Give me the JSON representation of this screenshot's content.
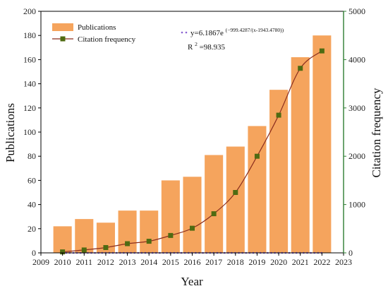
{
  "chart_data": {
    "type": "bar",
    "x": [
      2010,
      2011,
      2012,
      2013,
      2014,
      2015,
      2016,
      2017,
      2018,
      2019,
      2020,
      2021,
      2022
    ],
    "categories": [
      "2010",
      "2011",
      "2012",
      "2013",
      "2014",
      "2015",
      "2016",
      "2017",
      "2018",
      "2019",
      "2020",
      "2021",
      "2022"
    ],
    "series": [
      {
        "name": "Publications",
        "type": "bar",
        "axis": "left",
        "color": "#F5A45D",
        "values": [
          22,
          28,
          25,
          35,
          35,
          60,
          63,
          81,
          88,
          105,
          135,
          162,
          180
        ]
      },
      {
        "name": "Citation frequency",
        "type": "line",
        "axis": "right",
        "color": "#4F6B12",
        "line_color": "#8B2E1E",
        "values": [
          20,
          60,
          110,
          190,
          240,
          360,
          510,
          810,
          1250,
          2000,
          2850,
          3820,
          4180
        ]
      }
    ],
    "fit": {
      "type": "exponential",
      "color": "#8A63D2",
      "equation_prefix": "y=6.1867e",
      "equation_exponent": "(−999.4287/(x-1943.4780))",
      "r2_label": "R",
      "r2_sup": "2",
      "r2_value": "=98.935"
    },
    "xlabel": "Year",
    "ylabel": "Publications",
    "y2label": "Citation frequency",
    "xlim": [
      2009,
      2023
    ],
    "ylim": [
      0,
      200
    ],
    "y2lim": [
      0,
      5000
    ],
    "xticks": [
      "2009",
      "2010",
      "2011",
      "2012",
      "2013",
      "2014",
      "2015",
      "2016",
      "2017",
      "2018",
      "2019",
      "2020",
      "2021",
      "2022",
      "2023"
    ],
    "yticks": [
      "0",
      "20",
      "40",
      "60",
      "80",
      "100",
      "120",
      "140",
      "160",
      "180",
      "200"
    ],
    "y2ticks": [
      "0",
      "1000",
      "2000",
      "3000",
      "4000",
      "5000"
    ],
    "legend_position": "top-left",
    "grid": false,
    "left_axis_color": "#000000",
    "right_axis_color": "#2E7D32"
  }
}
